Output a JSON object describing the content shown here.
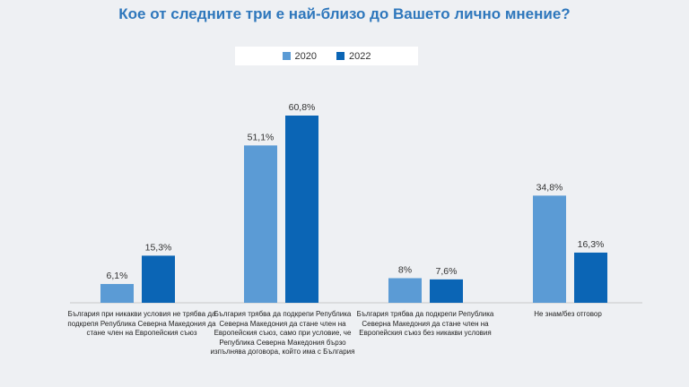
{
  "chart_data": {
    "type": "bar",
    "title": "Кое от следните три е най-близо до Вашето лично мнение?",
    "categories": [
      "България при никакви условия не трябва да подкрепя Република Северна Македония да стане член на Европейския съюз",
      "България трябва да подкрепи Република Северна Македония да стане член на Европейския съюз, само при условие, че Република Северна Македония бързо изпълнява договора, който има с България",
      "България трябва да подкрепи Република Северна Македония да стане член на Европейския съюз без никакви условия",
      "Не знам/без отговор"
    ],
    "series": [
      {
        "name": "2020",
        "color": "#5b9bd5",
        "values": [
          6.1,
          51.1,
          8,
          34.8
        ],
        "labels": [
          "6,1%",
          "51,1%",
          "8%",
          "34,8%"
        ]
      },
      {
        "name": "2022",
        "color": "#0b65b5",
        "values": [
          15.3,
          60.8,
          7.6,
          16.3
        ],
        "labels": [
          "15,3%",
          "60,8%",
          "7,6%",
          "16,3%"
        ]
      }
    ],
    "ylim": [
      0,
      64
    ],
    "grid": false,
    "legend_position": "top"
  }
}
